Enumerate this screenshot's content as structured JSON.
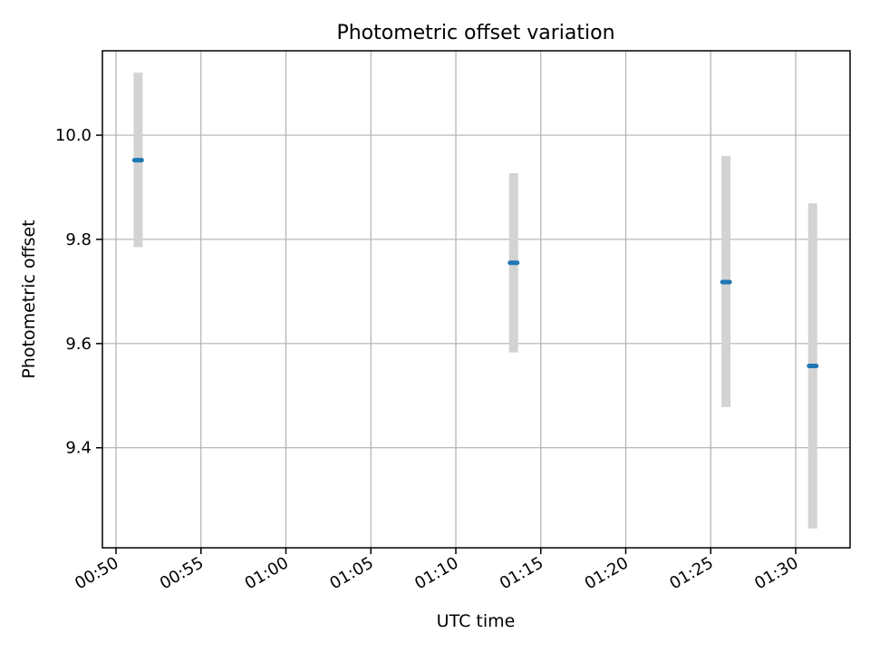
{
  "chart_data": {
    "type": "scatter",
    "title": "Photometric offset variation",
    "xlabel": "UTC time",
    "ylabel": "Photometric offset",
    "x_unit": "minutes past 00:00 UTC",
    "xlim": [
      49.2,
      93.2
    ],
    "ylim": [
      9.208,
      10.162
    ],
    "grid": true,
    "x_ticks": [
      {
        "value": 50,
        "label": "00:50"
      },
      {
        "value": 55,
        "label": "00:55"
      },
      {
        "value": 60,
        "label": "01:00"
      },
      {
        "value": 65,
        "label": "01:05"
      },
      {
        "value": 70,
        "label": "01:10"
      },
      {
        "value": 75,
        "label": "01:15"
      },
      {
        "value": 80,
        "label": "01:20"
      },
      {
        "value": 85,
        "label": "01:25"
      },
      {
        "value": 90,
        "label": "01:30"
      }
    ],
    "y_ticks": [
      {
        "value": 9.4,
        "label": "9.4"
      },
      {
        "value": 9.6,
        "label": "9.6"
      },
      {
        "value": 9.8,
        "label": "9.8"
      },
      {
        "value": 10.0,
        "label": "10.0"
      }
    ],
    "series": [
      {
        "name": "offset",
        "color": "#1f77b4",
        "errorbar_color": "#d3d3d3",
        "points": [
          {
            "x": 51.3,
            "y": 9.952,
            "ylow": 9.785,
            "yhigh": 10.12
          },
          {
            "x": 73.4,
            "y": 9.755,
            "ylow": 9.583,
            "yhigh": 9.927
          },
          {
            "x": 85.9,
            "y": 9.718,
            "ylow": 9.478,
            "yhigh": 9.96
          },
          {
            "x": 91.0,
            "y": 9.557,
            "ylow": 9.245,
            "yhigh": 9.869
          }
        ]
      }
    ]
  }
}
